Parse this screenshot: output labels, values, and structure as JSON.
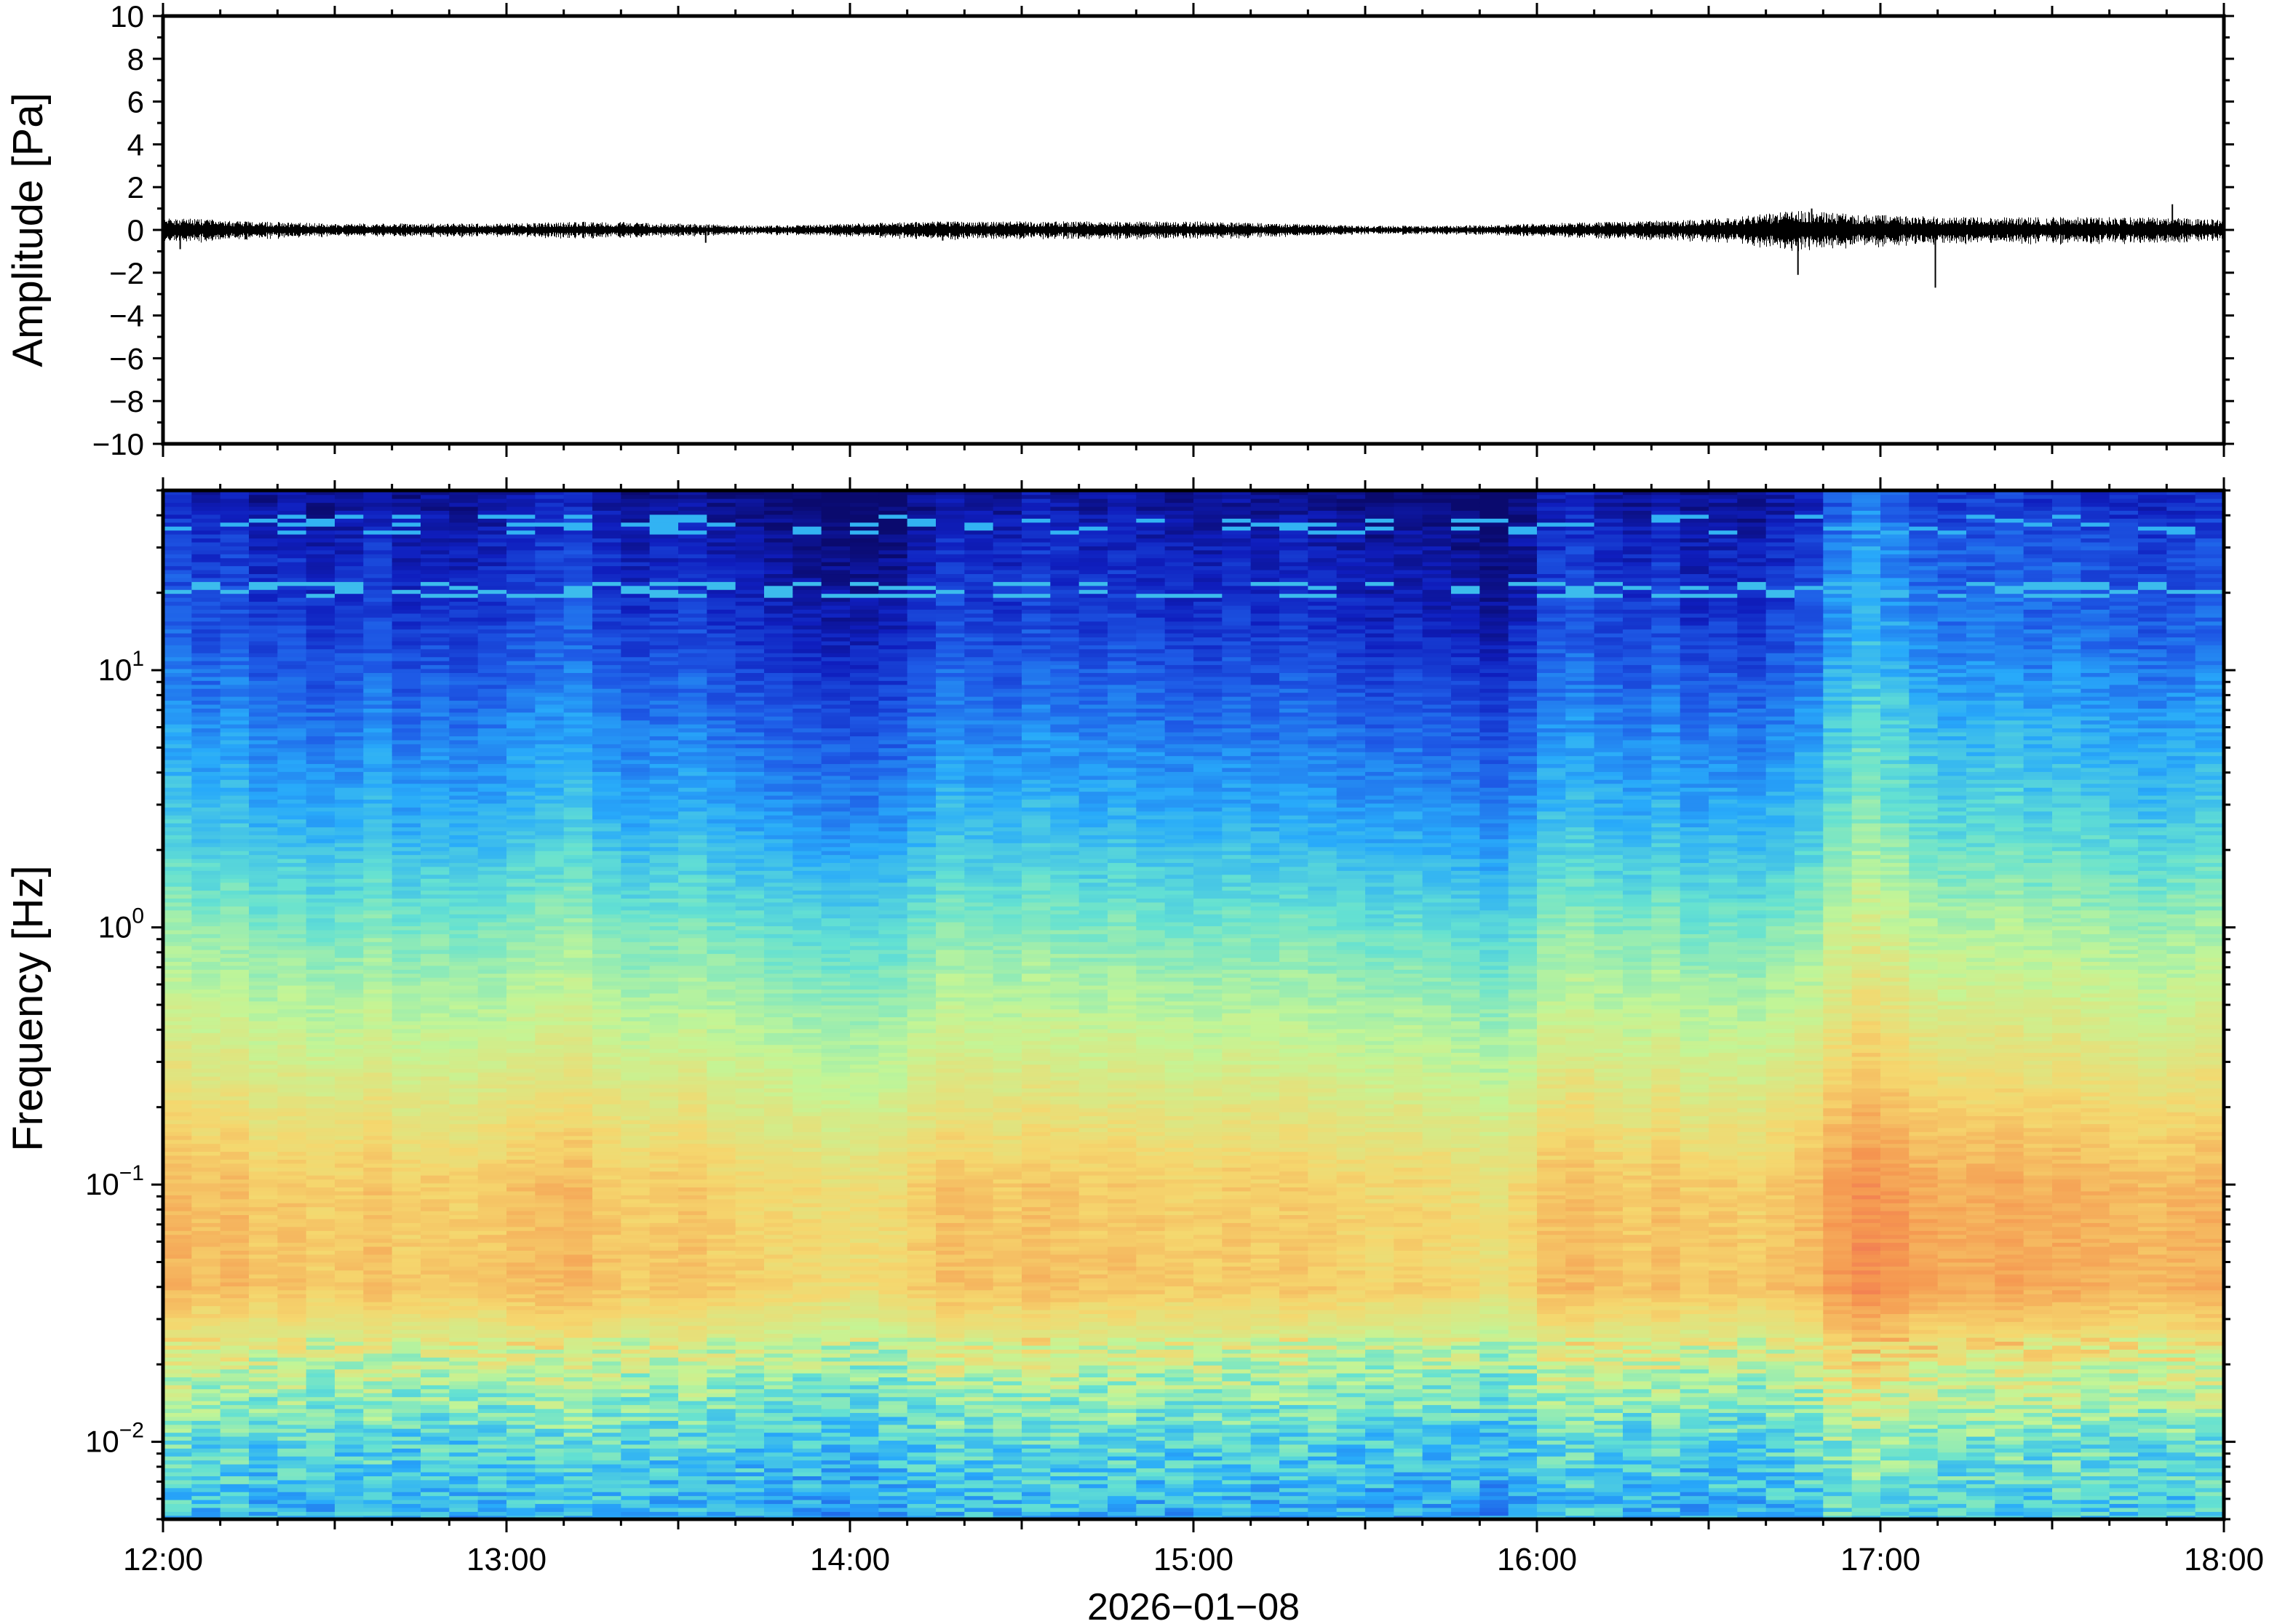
{
  "chart_data": [
    {
      "type": "line",
      "ylabel": "Amplitude [Pa]",
      "ylim": [
        -10,
        10
      ],
      "yticks": [
        "10",
        "8",
        "6",
        "4",
        "2",
        "0",
        "−2",
        "−4",
        "−6",
        "−8",
        "−10"
      ],
      "ytick_values": [
        10,
        8,
        6,
        4,
        2,
        0,
        -2,
        -4,
        -6,
        -8,
        -10
      ],
      "grid": false,
      "line_color": "#000000",
      "series": [
        {
          "x_hours": [
            12.0,
            12.25,
            12.5,
            12.75,
            13.0,
            13.25,
            13.5,
            13.75,
            14.0,
            14.25,
            14.5,
            14.75,
            15.0,
            15.25,
            15.5,
            15.75,
            16.0,
            16.25,
            16.5,
            16.75,
            17.0,
            17.25,
            17.5,
            17.75,
            18.0
          ],
          "envelope_pa": [
            0.6,
            0.4,
            0.3,
            0.3,
            0.3,
            0.4,
            0.3,
            0.2,
            0.3,
            0.4,
            0.4,
            0.4,
            0.4,
            0.3,
            0.2,
            0.2,
            0.3,
            0.4,
            0.5,
            0.9,
            0.7,
            0.6,
            0.6,
            0.6,
            0.5
          ],
          "spikes": [
            {
              "x": 16.76,
              "y": -2.1
            },
            {
              "x": 16.8,
              "y": 1.0
            },
            {
              "x": 17.16,
              "y": -2.7
            },
            {
              "x": 17.85,
              "y": 1.2
            },
            {
              "x": 12.05,
              "y": -0.9
            },
            {
              "x": 13.58,
              "y": -0.6
            },
            {
              "x": 14.27,
              "y": -0.5
            }
          ]
        }
      ]
    },
    {
      "type": "heatmap",
      "ylabel": "Frequency [Hz]",
      "xlabel": "2026−01−08",
      "xticks": [
        "12:00",
        "13:00",
        "14:00",
        "15:00",
        "16:00",
        "17:00",
        "18:00"
      ],
      "xlim_hours": [
        12,
        18
      ],
      "ylim_hz": [
        0.005,
        50
      ],
      "yscale": "log",
      "yticks": [
        {
          "base": "10",
          "exp": "1"
        },
        {
          "base": "10",
          "exp": "0"
        },
        {
          "base": "10",
          "exp": "−1"
        },
        {
          "base": "10",
          "exp": "−2"
        }
      ],
      "ytick_values": [
        10,
        1,
        0.1,
        0.01
      ],
      "colormap": "jet",
      "column_profiles": {
        "columns_per_hour": 12,
        "activity": [
          0.55,
          0.45,
          0.5,
          0.35,
          0.4,
          0.3,
          0.35,
          0.45,
          0.3,
          0.35,
          0.3,
          0.35,
          0.45,
          0.5,
          0.55,
          0.4,
          0.3,
          0.35,
          0.4,
          0.3,
          0.25,
          0.2,
          0.15,
          0.1,
          0.1,
          0.15,
          0.3,
          0.45,
          0.4,
          0.35,
          0.45,
          0.4,
          0.35,
          0.4,
          0.35,
          0.3,
          0.3,
          0.35,
          0.3,
          0.35,
          0.3,
          0.25,
          0.2,
          0.25,
          0.2,
          0.15,
          0.05,
          0.2,
          0.45,
          0.5,
          0.4,
          0.35,
          0.45,
          0.3,
          0.35,
          0.3,
          0.4,
          0.5,
          0.8,
          0.95,
          0.85,
          0.7,
          0.65,
          0.65,
          0.7,
          0.6,
          0.65,
          0.6,
          0.55,
          0.5,
          0.55,
          0.6
        ]
      }
    }
  ]
}
